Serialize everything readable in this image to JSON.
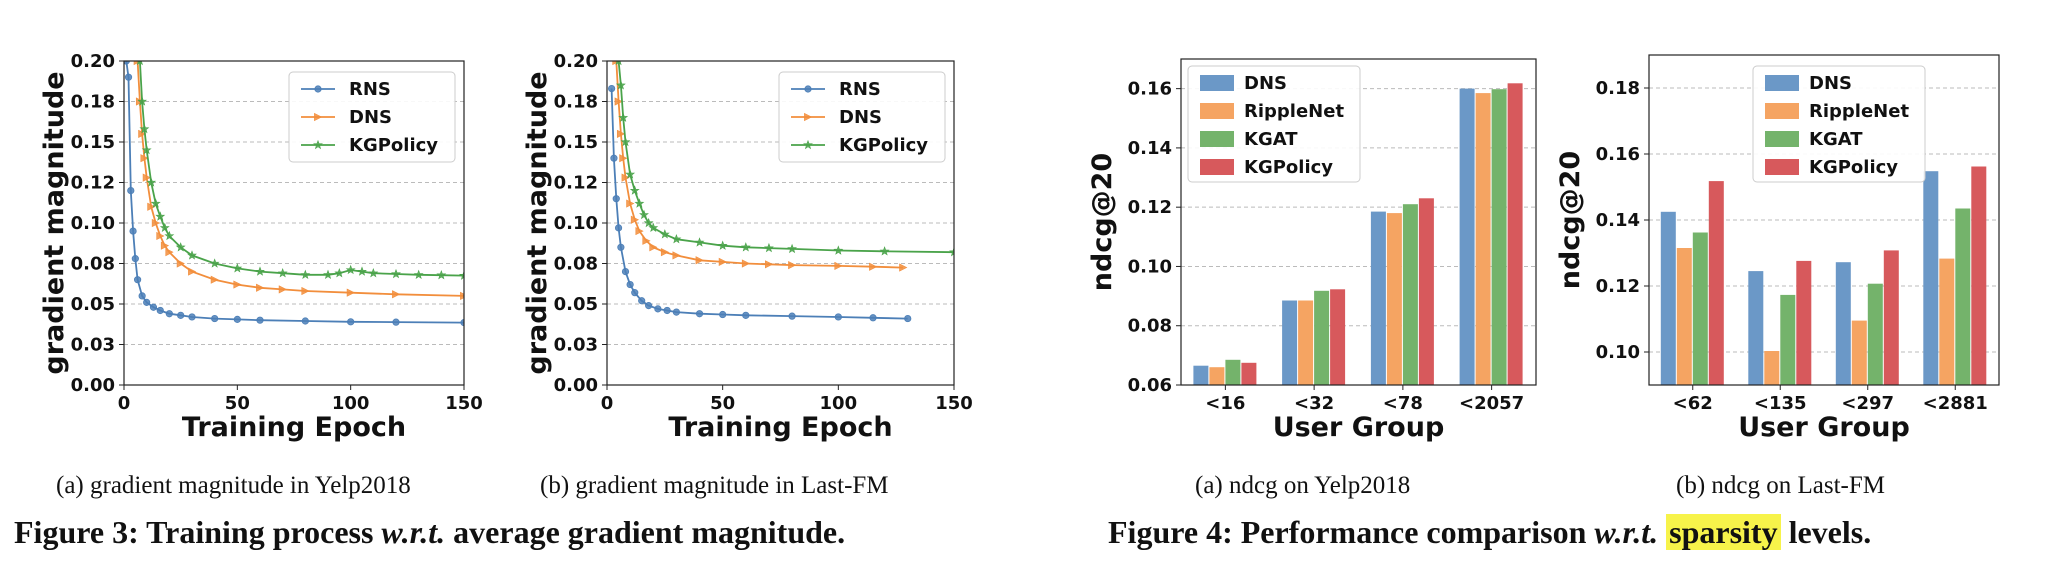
{
  "chart_data": [
    {
      "id": "3a",
      "type": "line",
      "ylabel": "gradient magnitude",
      "xlabel": "Training Epoch",
      "xlim": [
        0,
        150
      ],
      "ylim": [
        0,
        0.2
      ],
      "xticks": [
        0,
        50,
        100,
        150
      ],
      "xtick_labels": [
        "0",
        "50",
        "100",
        "150"
      ],
      "yticks": [
        0,
        0.025,
        0.05,
        0.075,
        0.1,
        0.125,
        0.15,
        0.175,
        0.2
      ],
      "ytick_labels": [
        "0.00",
        "0.03",
        "0.05",
        "0.08",
        "0.10",
        "0.12",
        "0.15",
        "0.18",
        "0.20"
      ],
      "grid": "horizontal-dashed",
      "legend_position": "top-right",
      "series": [
        {
          "name": "RNS",
          "color": "#4c7fb7",
          "marker": "circle",
          "x": [
            1,
            2,
            3,
            4,
            5,
            6,
            8,
            10,
            13,
            16,
            20,
            25,
            30,
            40,
            50,
            60,
            80,
            100,
            120,
            150
          ],
          "y": [
            0.2,
            0.19,
            0.12,
            0.095,
            0.078,
            0.065,
            0.055,
            0.051,
            0.048,
            0.046,
            0.044,
            0.043,
            0.042,
            0.041,
            0.0405,
            0.04,
            0.0395,
            0.039,
            0.0388,
            0.0385
          ]
        },
        {
          "name": "DNS",
          "color": "#f28e3c",
          "marker": "triangle-right",
          "x": [
            6,
            7,
            8,
            9,
            10,
            12,
            14,
            16,
            18,
            20,
            25,
            30,
            40,
            50,
            60,
            70,
            80,
            100,
            120,
            150
          ],
          "y": [
            0.2,
            0.175,
            0.155,
            0.14,
            0.128,
            0.11,
            0.1,
            0.092,
            0.086,
            0.082,
            0.075,
            0.07,
            0.065,
            0.062,
            0.06,
            0.059,
            0.058,
            0.057,
            0.056,
            0.055
          ]
        },
        {
          "name": "KGPolicy",
          "color": "#4aa34a",
          "marker": "star",
          "x": [
            7,
            8,
            9,
            10,
            12,
            14,
            16,
            18,
            20,
            25,
            30,
            40,
            50,
            60,
            70,
            80,
            90,
            95,
            100,
            105,
            110,
            120,
            130,
            140,
            150
          ],
          "y": [
            0.2,
            0.175,
            0.158,
            0.145,
            0.125,
            0.112,
            0.104,
            0.097,
            0.092,
            0.085,
            0.08,
            0.075,
            0.072,
            0.07,
            0.069,
            0.068,
            0.068,
            0.069,
            0.071,
            0.07,
            0.069,
            0.0685,
            0.068,
            0.0678,
            0.0675
          ]
        }
      ]
    },
    {
      "id": "3b",
      "type": "line",
      "ylabel": "gradient magnitude",
      "xlabel": "Training Epoch",
      "xlim": [
        0,
        150
      ],
      "ylim": [
        0,
        0.2
      ],
      "xticks": [
        0,
        50,
        100,
        150
      ],
      "xtick_labels": [
        "0",
        "50",
        "100",
        "150"
      ],
      "yticks": [
        0,
        0.025,
        0.05,
        0.075,
        0.1,
        0.125,
        0.15,
        0.175,
        0.2
      ],
      "ytick_labels": [
        "0.00",
        "0.03",
        "0.05",
        "0.08",
        "0.10",
        "0.12",
        "0.15",
        "0.18",
        "0.20"
      ],
      "grid": "horizontal-dashed",
      "legend_position": "top-right",
      "series": [
        {
          "name": "RNS",
          "color": "#4c7fb7",
          "marker": "circle",
          "x": [
            2,
            3,
            4,
            5,
            6,
            8,
            10,
            12,
            15,
            18,
            22,
            26,
            30,
            40,
            50,
            60,
            80,
            100,
            115,
            130
          ],
          "y": [
            0.183,
            0.14,
            0.115,
            0.097,
            0.085,
            0.07,
            0.062,
            0.057,
            0.052,
            0.049,
            0.047,
            0.046,
            0.045,
            0.044,
            0.0435,
            0.043,
            0.0425,
            0.042,
            0.0415,
            0.041
          ]
        },
        {
          "name": "DNS",
          "color": "#f28e3c",
          "marker": "triangle-right",
          "x": [
            4,
            5,
            6,
            7,
            8,
            10,
            12,
            14,
            17,
            20,
            25,
            30,
            40,
            50,
            60,
            70,
            80,
            100,
            115,
            128
          ],
          "y": [
            0.2,
            0.175,
            0.155,
            0.14,
            0.128,
            0.112,
            0.102,
            0.095,
            0.089,
            0.085,
            0.082,
            0.08,
            0.077,
            0.076,
            0.075,
            0.0745,
            0.074,
            0.0735,
            0.073,
            0.0725
          ]
        },
        {
          "name": "KGPolicy",
          "color": "#4aa34a",
          "marker": "star",
          "x": [
            5,
            6,
            7,
            8,
            10,
            12,
            14,
            16,
            18,
            20,
            25,
            30,
            40,
            50,
            60,
            70,
            80,
            100,
            120,
            150
          ],
          "y": [
            0.2,
            0.185,
            0.165,
            0.15,
            0.13,
            0.12,
            0.112,
            0.105,
            0.1,
            0.097,
            0.093,
            0.09,
            0.088,
            0.086,
            0.085,
            0.0845,
            0.084,
            0.083,
            0.0825,
            0.082
          ]
        }
      ]
    },
    {
      "id": "4a",
      "type": "bar",
      "ylabel": "ndcg@20",
      "xlabel": "User Group",
      "categories": [
        "<16",
        "<32",
        "<78",
        "<2057"
      ],
      "ylim": [
        0.06,
        0.17
      ],
      "yticks": [
        0.06,
        0.08,
        0.1,
        0.12,
        0.14,
        0.16
      ],
      "ytick_labels": [
        "0.06",
        "0.08",
        "0.10",
        "0.12",
        "0.14",
        "0.16"
      ],
      "grid": "horizontal-dashed",
      "legend_position": "top-left",
      "series": [
        {
          "name": "DNS",
          "color": "#6b98c7",
          "values": [
            0.0665,
            0.0885,
            0.1185,
            0.16
          ]
        },
        {
          "name": "RippleNet",
          "color": "#f5a462",
          "values": [
            0.066,
            0.0885,
            0.118,
            0.1585
          ]
        },
        {
          "name": "KGAT",
          "color": "#74b36b",
          "values": [
            0.0685,
            0.0918,
            0.121,
            0.1598
          ]
        },
        {
          "name": "KGPolicy",
          "color": "#d7595c",
          "values": [
            0.0675,
            0.0923,
            0.123,
            0.1618
          ]
        }
      ]
    },
    {
      "id": "4b",
      "type": "bar",
      "ylabel": "ndcg@20",
      "xlabel": "User Group",
      "categories": [
        "<62",
        "<135",
        "<297",
        "<2881"
      ],
      "ylim": [
        0.09,
        0.19
      ],
      "yticks": [
        0.1,
        0.12,
        0.14,
        0.16,
        0.18
      ],
      "ytick_labels": [
        "0.10",
        "0.12",
        "0.14",
        "0.16",
        "0.18"
      ],
      "grid": "horizontal-dashed",
      "legend_position": "top-center",
      "series": [
        {
          "name": "DNS",
          "color": "#6b98c7",
          "values": [
            0.1425,
            0.1245,
            0.1272,
            0.1548
          ]
        },
        {
          "name": "RippleNet",
          "color": "#f5a462",
          "values": [
            0.1315,
            0.1003,
            0.1095,
            0.1283
          ]
        },
        {
          "name": "KGAT",
          "color": "#74b36b",
          "values": [
            0.1362,
            0.1173,
            0.1207,
            0.1435
          ]
        },
        {
          "name": "KGPolicy",
          "color": "#d7595c",
          "values": [
            0.1518,
            0.1276,
            0.1308,
            0.1562
          ]
        }
      ]
    }
  ],
  "captions": {
    "sub_3a": "(a)  gradient magnitude in Yelp2018",
    "sub_3b": "(b)  gradient magnitude in Last-FM",
    "sub_4a": "(a)  ndcg on Yelp2018",
    "sub_4b": "(b)  ndcg on Last-FM",
    "fig3_prefix": "Figure 3: Training process ",
    "fig3_italic": "w.r.t.",
    "fig3_suffix": " average gradient magnitude.",
    "fig4_prefix": "Figure 4: Performance comparison ",
    "fig4_italic": "w.r.t.",
    "fig4_highlight": "sparsity",
    "fig4_suffix": " levels."
  },
  "colors": {
    "highlight": "#f7f34a",
    "grid": "#bbbbbb"
  }
}
